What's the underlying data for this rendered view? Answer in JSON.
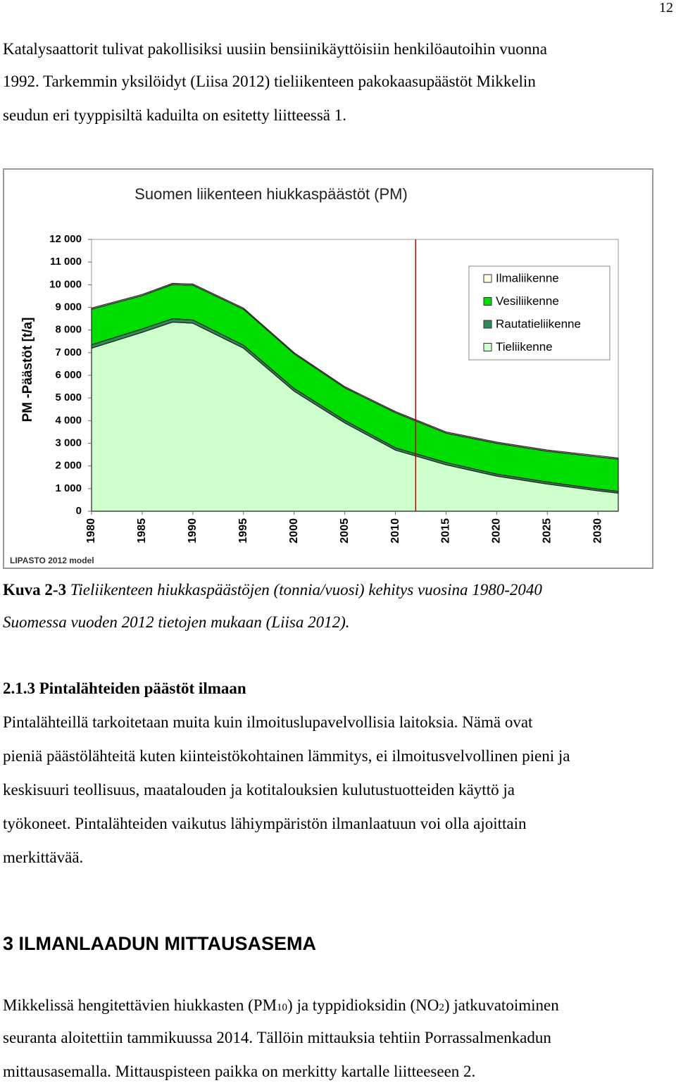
{
  "page_number": "12",
  "intro": {
    "lines": [
      "Katalysaattorit tulivat pakollisiksi uusiin bensiinikäyttöisiin henkilöautoihin vuonna",
      "1992. Tarkemmin yksilöidyt (Liisa 2012) tieliikenteen pakokaasupäästöt Mikkelin",
      "seudun eri tyyppisiltä kaduilta on esitetty liitteessä 1."
    ]
  },
  "chart_data": {
    "type": "stacked-area",
    "title": "Suomen liikenteen hiukkaspäästöt (PM)",
    "y_label": "PM -Päästöt [t/a]",
    "source_note": "LIPASTO 2012 model",
    "x": [
      1980,
      1985,
      1988,
      1990,
      1995,
      2000,
      2005,
      2010,
      2015,
      2020,
      2025,
      2030,
      2032
    ],
    "series": [
      {
        "name": "Tieliikenne",
        "color": "#ccffcc",
        "values": [
          7200,
          7900,
          8350,
          8300,
          7200,
          5300,
          3900,
          2700,
          2050,
          1550,
          1200,
          900,
          800
        ]
      },
      {
        "name": "Rautatieliikenne",
        "color": "#2e8b57",
        "values": [
          150,
          150,
          150,
          140,
          130,
          120,
          110,
          100,
          100,
          90,
          90,
          80,
          80
        ]
      },
      {
        "name": "Vesiliikenne",
        "color": "#00dd00",
        "values": [
          1570,
          1470,
          1510,
          1540,
          1590,
          1530,
          1440,
          1550,
          1300,
          1360,
          1360,
          1420,
          1420
        ]
      },
      {
        "name": "Ilmaliikenne",
        "color": "#ffffdd",
        "values": [
          50,
          50,
          50,
          50,
          50,
          50,
          50,
          50,
          50,
          50,
          50,
          50,
          50
        ]
      }
    ],
    "xlim": [
      1980,
      2032
    ],
    "xticks": [
      1980,
      1985,
      1990,
      1995,
      2000,
      2005,
      2010,
      2015,
      2020,
      2025,
      2030
    ],
    "ylim": [
      0,
      12000
    ],
    "yticks": [
      0,
      {
        "value": 1000,
        "label": "1 000"
      },
      {
        "value": 2000,
        "label": "2 000"
      },
      {
        "value": 3000,
        "label": "3 000"
      },
      {
        "value": 4000,
        "label": "4 000"
      },
      {
        "value": 5000,
        "label": "5 000"
      },
      {
        "value": 6000,
        "label": "6 000"
      },
      {
        "value": 7000,
        "label": "7 000"
      },
      {
        "value": 8000,
        "label": "8 000"
      },
      {
        "value": 9000,
        "label": "9 000"
      },
      {
        "value": 10000,
        "label": "10 000"
      },
      {
        "value": 11000,
        "label": "11 000"
      },
      {
        "value": 12000,
        "label": "12 000"
      }
    ],
    "vline": {
      "x": 2012,
      "color": "#c00000"
    },
    "grid": false,
    "legend": "upper right"
  },
  "caption": {
    "label": "Kuva 2-3",
    "lines": [
      "Tieliikenteen hiukkaspäästöjen (tonnia/vuosi) kehitys vuosina 1980-2040",
      "Suomessa vuoden 2012 tietojen mukaan (Liisa 2012)."
    ]
  },
  "section_213": {
    "heading": "2.1.3 Pintalähteiden päästöt ilmaan",
    "lines": [
      "Pintalähteillä tarkoitetaan muita kuin ilmoituslupavelvollisia laitoksia. Nämä ovat",
      "pieniä päästölähteitä kuten kiinteistökohtainen lämmitys, ei ilmoitusvelvollinen pieni ja",
      "keskisuuri teollisuus, maatalouden ja kotitalouksien kulutustuotteiden käyttö ja",
      "työkoneet. Pintalähteiden vaikutus lähiympäristön ilmanlaatuun voi olla ajoittain",
      "merkittävää."
    ]
  },
  "section_3": {
    "heading": "3 ILMANLAADUN MITTAUSASEMA",
    "lines": [
      [
        "Mikkelissä hengitettävien hiukkasten (PM",
        "10",
        ") ja typpidioksidin (NO",
        "2",
        ") jatkuvatoiminen"
      ],
      [
        "seuranta aloitettiin tammikuussa 2014. Tällöin mittauksia tehtiin Porrassalmenkadun"
      ],
      [
        "mittausasemalla. Mittauspisteen paikka on merkitty kartalle liitteeseen 2."
      ]
    ]
  }
}
